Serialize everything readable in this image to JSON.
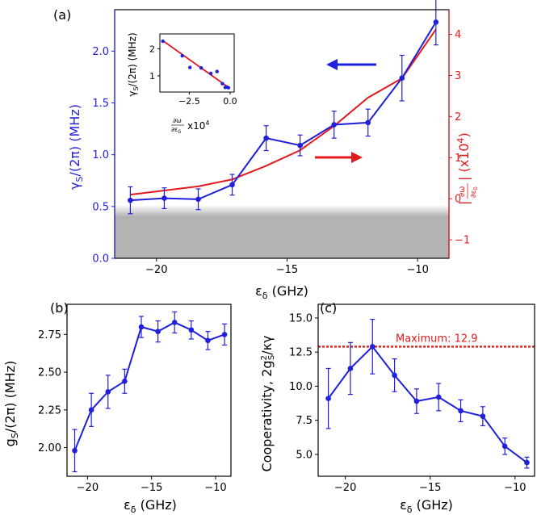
{
  "colors": {
    "blue": "#1f1fdc",
    "red": "#e31a1c",
    "gray": "#b3b3b3",
    "black": "#000000"
  },
  "panels": {
    "a": "(a)",
    "b": "(b)",
    "c": "(c)"
  },
  "chart_data": [
    {
      "id": "a",
      "type": "line",
      "xlabel": "ε_δ (GHz)",
      "xlim": [
        -21.6,
        -8.8
      ],
      "xticks": [
        -20,
        -15,
        -10
      ],
      "x": [
        -21.0,
        -19.7,
        -18.4,
        -17.1,
        -15.8,
        -14.5,
        -13.2,
        -11.9,
        -10.6,
        -9.3
      ],
      "left_axis": {
        "label": "γ_S/(2π) (MHz)",
        "ylim": [
          0.0,
          2.4
        ],
        "yticks": [
          0.0,
          0.5,
          1.0,
          1.5,
          2.0
        ],
        "ytick_labels": [
          "0.0",
          "0.5",
          "1.0",
          "1.5",
          "2.0"
        ]
      },
      "right_axis": {
        "label": "|∂ω/∂ε_δ| (x10⁴)",
        "ylim": [
          -1.45,
          4.6
        ],
        "yticks": [
          -1,
          0,
          1,
          2,
          3,
          4
        ],
        "ytick_labels": [
          "−1",
          "0",
          "1",
          "2",
          "3",
          "4"
        ]
      },
      "series": [
        {
          "axis": "left",
          "color": "blue",
          "values": [
            0.56,
            0.58,
            0.57,
            0.71,
            1.16,
            1.09,
            1.29,
            1.31,
            1.74,
            2.28
          ],
          "errors": [
            0.13,
            0.1,
            0.1,
            0.1,
            0.12,
            0.1,
            0.13,
            0.13,
            0.22,
            0.22
          ]
        },
        {
          "axis": "right",
          "color": "red",
          "values": [
            0.1,
            0.2,
            0.3,
            0.47,
            0.8,
            1.18,
            1.77,
            2.46,
            2.93,
            4.12
          ]
        }
      ],
      "shaded_region": {
        "ylim": [
          0.0,
          0.5
        ],
        "color": "gray"
      },
      "annotations": [
        {
          "type": "arrow",
          "direction": "left",
          "color": "blue",
          "points_to": "left_axis"
        },
        {
          "type": "arrow",
          "direction": "right",
          "color": "red",
          "points_to": "right_axis"
        }
      ]
    },
    {
      "id": "a-inset",
      "type": "scatter",
      "xlabel": "∂ω/∂ε_δ x10⁴",
      "ylabel": "γ_S/(2π) (MHz)",
      "xlim": [
        -4.3,
        0.25
      ],
      "ylim": [
        0.4,
        2.55
      ],
      "xticks": [
        -2.5,
        0.0
      ],
      "xtick_labels": [
        "−2.5",
        "0.0"
      ],
      "yticks": [
        1,
        2
      ],
      "ytick_labels": [
        "1",
        "2"
      ],
      "points": {
        "x": [
          -4.12,
          -2.93,
          -2.46,
          -1.77,
          -1.18,
          -0.8,
          -0.47,
          -0.3,
          -0.2,
          -0.1
        ],
        "y": [
          2.28,
          1.74,
          1.31,
          1.29,
          1.09,
          1.16,
          0.71,
          0.57,
          0.58,
          0.56
        ]
      },
      "fit_line": {
        "x": [
          -4.12,
          -0.05
        ],
        "y": [
          2.3,
          0.55
        ],
        "color": "red"
      }
    },
    {
      "id": "b",
      "type": "line",
      "xlabel": "ε_δ (GHz)",
      "ylabel": "g_S/(2π) (MHz)",
      "xlim": [
        -21.6,
        -8.8
      ],
      "ylim": [
        1.81,
        2.95
      ],
      "xticks": [
        -20,
        -15,
        -10
      ],
      "yticks": [
        2.0,
        2.25,
        2.5,
        2.75
      ],
      "ytick_labels": [
        "2.00",
        "2.25",
        "2.50",
        "2.75"
      ],
      "x": [
        -21.0,
        -19.7,
        -18.4,
        -17.1,
        -15.8,
        -14.5,
        -13.2,
        -11.9,
        -10.6,
        -9.3
      ],
      "values": [
        1.98,
        2.25,
        2.37,
        2.44,
        2.8,
        2.77,
        2.83,
        2.78,
        2.71,
        2.75
      ],
      "errors": [
        0.14,
        0.11,
        0.11,
        0.08,
        0.07,
        0.07,
        0.07,
        0.06,
        0.06,
        0.07
      ],
      "color": "blue"
    },
    {
      "id": "c",
      "type": "line",
      "xlabel": "ε_δ (GHz)",
      "ylabel": "Cooperativity, 2g_S²/κγ",
      "xlim": [
        -21.6,
        -8.8
      ],
      "ylim": [
        3.4,
        16.0
      ],
      "xticks": [
        -20,
        -15,
        -10
      ],
      "yticks": [
        5.0,
        7.5,
        10.0,
        12.5,
        15.0
      ],
      "ytick_labels": [
        "5.0",
        "7.5",
        "10.0",
        "12.5",
        "15.0"
      ],
      "x": [
        -21.0,
        -19.7,
        -18.4,
        -17.1,
        -15.8,
        -14.5,
        -13.2,
        -11.9,
        -10.6,
        -9.3
      ],
      "values": [
        9.1,
        11.3,
        12.9,
        10.8,
        8.9,
        9.2,
        8.2,
        7.8,
        5.6,
        4.4
      ],
      "errors": [
        2.2,
        1.9,
        2.0,
        1.2,
        0.9,
        1.0,
        0.8,
        0.7,
        0.6,
        0.4
      ],
      "color": "blue",
      "reference_line": {
        "y": 12.9,
        "color": "red",
        "style": "dotted",
        "label": "Maximum: 12.9"
      }
    }
  ]
}
